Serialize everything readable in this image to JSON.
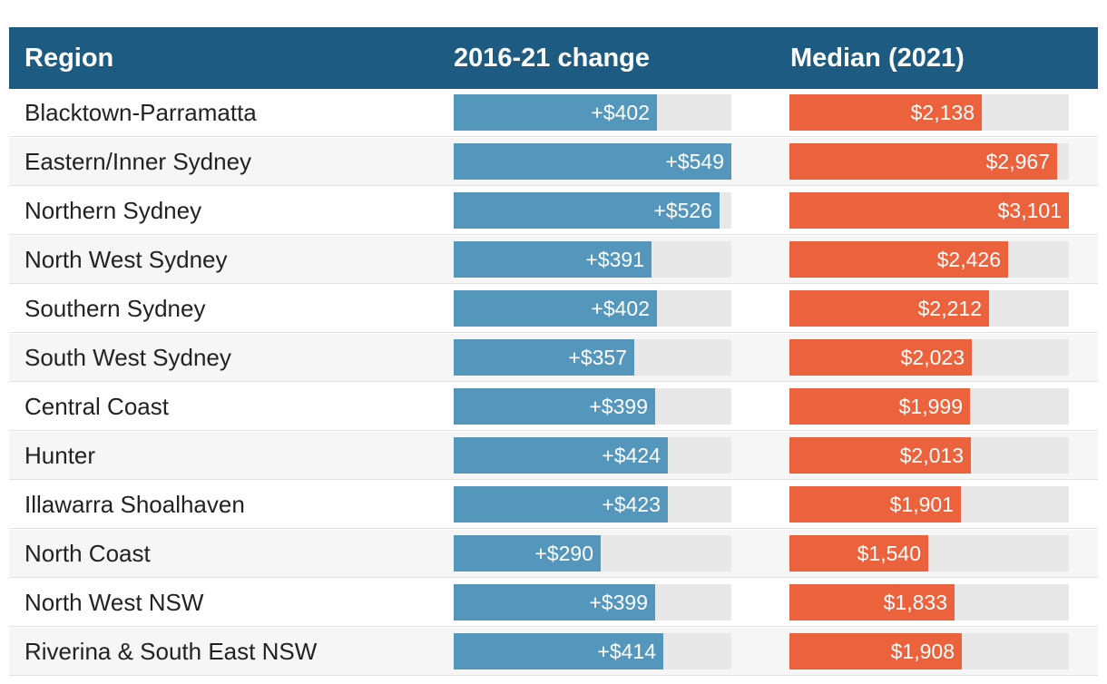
{
  "table": {
    "headers": {
      "region": "Region",
      "change": "2016-21 change",
      "median": "Median (2021)"
    }
  },
  "colors": {
    "header_bg": "#1d5b82",
    "change_bar": "#5596bd",
    "median_bar": "#eb623d",
    "track": "#e8e8e8"
  },
  "chart_data": {
    "type": "table",
    "columns": [
      "Region",
      "2016-21 change",
      "Median (2021)"
    ],
    "change_max": 549,
    "median_max": 3101,
    "rows": [
      {
        "region": "Blacktown-Parramatta",
        "change": 402,
        "change_label": "+$402",
        "median": 2138,
        "median_label": "$2,138"
      },
      {
        "region": "Eastern/Inner Sydney",
        "change": 549,
        "change_label": "+$549",
        "median": 2967,
        "median_label": "$2,967"
      },
      {
        "region": "Northern Sydney",
        "change": 526,
        "change_label": "+$526",
        "median": 3101,
        "median_label": "$3,101"
      },
      {
        "region": "North West Sydney",
        "change": 391,
        "change_label": "+$391",
        "median": 2426,
        "median_label": "$2,426"
      },
      {
        "region": "Southern Sydney",
        "change": 402,
        "change_label": "+$402",
        "median": 2212,
        "median_label": "$2,212"
      },
      {
        "region": "South West Sydney",
        "change": 357,
        "change_label": "+$357",
        "median": 2023,
        "median_label": "$2,023"
      },
      {
        "region": "Central Coast",
        "change": 399,
        "change_label": "+$399",
        "median": 1999,
        "median_label": "$1,999"
      },
      {
        "region": "Hunter",
        "change": 424,
        "change_label": "+$424",
        "median": 2013,
        "median_label": "$2,013"
      },
      {
        "region": "Illawarra Shoalhaven",
        "change": 423,
        "change_label": "+$423",
        "median": 1901,
        "median_label": "$1,901"
      },
      {
        "region": "North Coast",
        "change": 290,
        "change_label": "+$290",
        "median": 1540,
        "median_label": "$1,540"
      },
      {
        "region": "North West NSW",
        "change": 399,
        "change_label": "+$399",
        "median": 1833,
        "median_label": "$1,833"
      },
      {
        "region": "Riverina & South East NSW",
        "change": 414,
        "change_label": "+$414",
        "median": 1908,
        "median_label": "$1,908"
      }
    ]
  }
}
